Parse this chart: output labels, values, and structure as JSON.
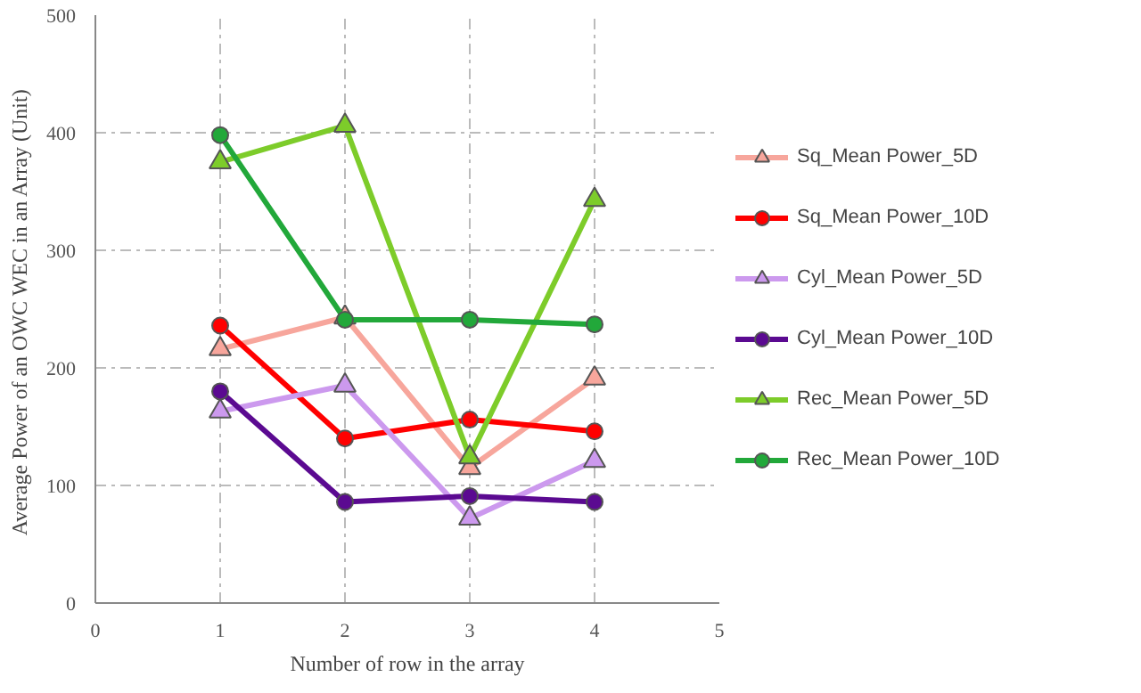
{
  "chart_data": {
    "type": "line",
    "xlabel": "Number of row in the array",
    "ylabel": "Average  Power of an OWC WEC in an Array (Unit)",
    "x": [
      1,
      2,
      3,
      4
    ],
    "xlim": [
      0,
      5
    ],
    "xticks": [
      0,
      1,
      2,
      3,
      4,
      5
    ],
    "ylim": [
      0,
      500
    ],
    "yticks": [
      0,
      100,
      200,
      300,
      400,
      500
    ],
    "grid": true,
    "legend": "right",
    "line_style": "solid",
    "series": [
      {
        "name": "Sq_Mean Power_5D",
        "color": "#f7a69c",
        "marker": "triangle",
        "values": [
          216,
          243,
          115,
          191
        ]
      },
      {
        "name": "Sq_Mean Power_10D",
        "color": "#ff0000",
        "marker": "circle",
        "values": [
          236,
          140,
          156,
          146
        ]
      },
      {
        "name": "Cyl_Mean Power_5D",
        "color": "#cc99ee",
        "marker": "triangle",
        "values": [
          163,
          185,
          72,
          121
        ]
      },
      {
        "name": "Cyl_Mean Power_10D",
        "color": "#5b0a91",
        "marker": "circle",
        "values": [
          180,
          86,
          91,
          86
        ]
      },
      {
        "name": "Rec_Mean Power_5D",
        "color": "#7dcc2a",
        "marker": "triangle",
        "values": [
          375,
          406,
          124,
          343
        ]
      },
      {
        "name": "Rec_Mean Power_10D",
        "color": "#22a83a",
        "marker": "circle",
        "values": [
          398,
          241,
          241,
          237
        ]
      }
    ]
  }
}
